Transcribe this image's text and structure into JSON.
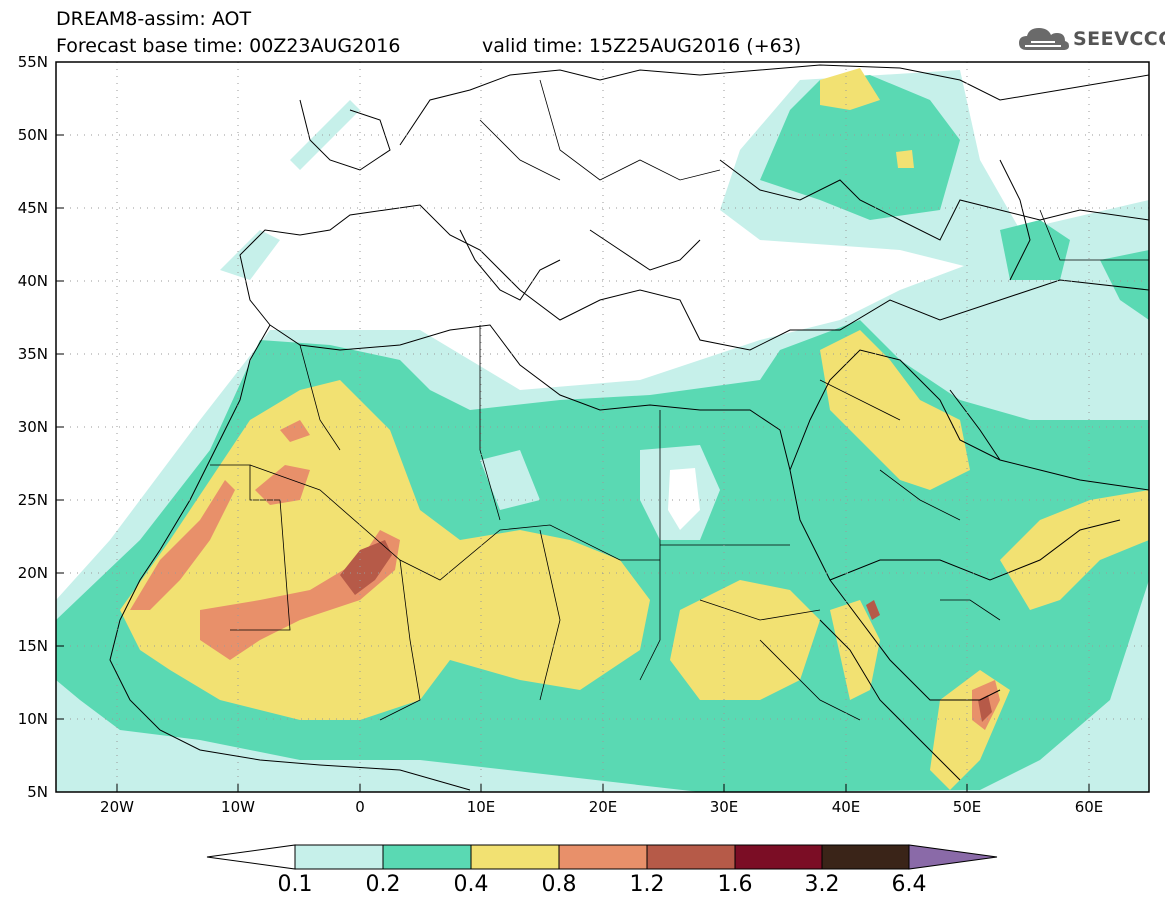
{
  "header": {
    "title_line1": "DREAM8-assim: AOT",
    "title_line2": "Forecast base time: 00Z23AUG2016",
    "valid_time": "valid time: 15Z25AUG2016 (+63)",
    "logo_text": "SEEVCCC"
  },
  "map": {
    "projection": "lat-lon",
    "lon_range": [
      -25,
      65
    ],
    "lat_range": [
      5,
      55
    ],
    "lat_ticks": [
      "5N",
      "10N",
      "15N",
      "20N",
      "25N",
      "30N",
      "35N",
      "40N",
      "45N",
      "50N",
      "55N"
    ],
    "lon_ticks": [
      "20W",
      "10W",
      "0",
      "10E",
      "20E",
      "30E",
      "40E",
      "50E",
      "60E"
    ],
    "grid": "dotted"
  },
  "colorbar": {
    "levels": [
      "0.1",
      "0.2",
      "0.4",
      "0.8",
      "1.2",
      "1.6",
      "3.2",
      "6.4"
    ],
    "colors": [
      "#ffffff",
      "#c6f0ea",
      "#5ad9b3",
      "#f2e172",
      "#e8906a",
      "#b65a48",
      "#7b0d25",
      "#3a2418",
      "#8a6aa8"
    ]
  }
}
